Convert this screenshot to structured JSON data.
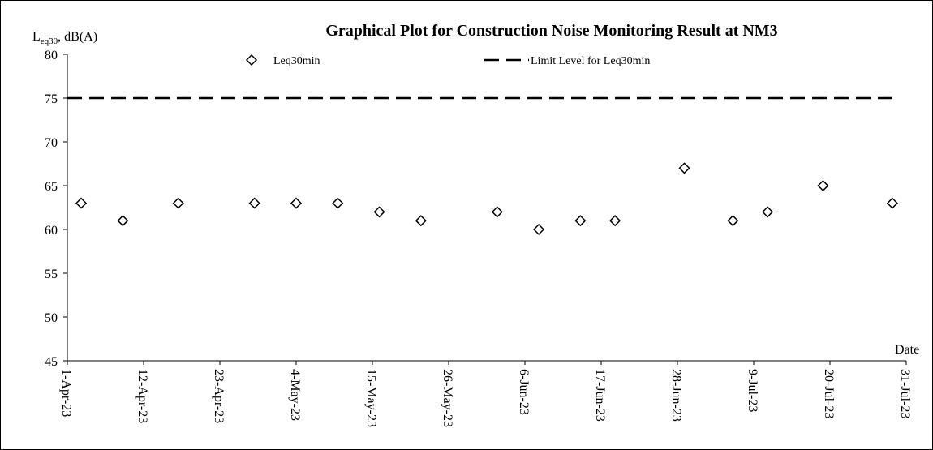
{
  "chart_data": {
    "type": "scatter",
    "title": "Graphical Plot for Construction Noise Monitoring Result at NM3",
    "y_label": {
      "main": "L",
      "sub": "eq30",
      "rest": ", dB(A)"
    },
    "x_label": "Date",
    "series": [
      {
        "name": "Leq30min",
        "type": "scatter",
        "color": "#000000",
        "x": [
          "2023-04-03",
          "2023-04-09",
          "2023-04-17",
          "2023-04-28",
          "2023-05-04",
          "2023-05-10",
          "2023-05-16",
          "2023-05-22",
          "2023-06-02",
          "2023-06-08",
          "2023-06-14",
          "2023-06-19",
          "2023-06-29",
          "2023-07-06",
          "2023-07-11",
          "2023-07-19",
          "2023-07-29"
        ],
        "values": [
          63,
          61,
          63,
          63,
          63,
          63,
          62,
          61,
          62,
          60,
          61,
          61,
          67,
          61,
          62,
          65,
          63
        ]
      },
      {
        "name": "Limit Level for Leq30min",
        "type": "line",
        "color": "#000000",
        "x": [
          "2023-04-01",
          "2023-07-29"
        ],
        "values": [
          75,
          75
        ]
      }
    ],
    "xlim": [
      "2023-04-01",
      "2023-07-31"
    ],
    "xticks": [
      {
        "value": "2023-04-01",
        "label": "1-Apr-23"
      },
      {
        "value": "2023-04-12",
        "label": "12-Apr-23"
      },
      {
        "value": "2023-04-23",
        "label": "23-Apr-23"
      },
      {
        "value": "2023-05-04",
        "label": "4-May-23"
      },
      {
        "value": "2023-05-15",
        "label": "15-May-23"
      },
      {
        "value": "2023-05-26",
        "label": "26-May-23"
      },
      {
        "value": "2023-06-06",
        "label": "6-Jun-23"
      },
      {
        "value": "2023-06-17",
        "label": "17-Jun-23"
      },
      {
        "value": "2023-06-28",
        "label": "28-Jun-23"
      },
      {
        "value": "2023-07-09",
        "label": "9-Jul-23"
      },
      {
        "value": "2023-07-20",
        "label": "20-Jul-23"
      },
      {
        "value": "2023-07-31",
        "label": "31-Jul-23"
      }
    ],
    "ylim": [
      45,
      80
    ],
    "yticks": [
      45,
      50,
      55,
      60,
      65,
      70,
      75,
      80
    ],
    "grid": false
  }
}
